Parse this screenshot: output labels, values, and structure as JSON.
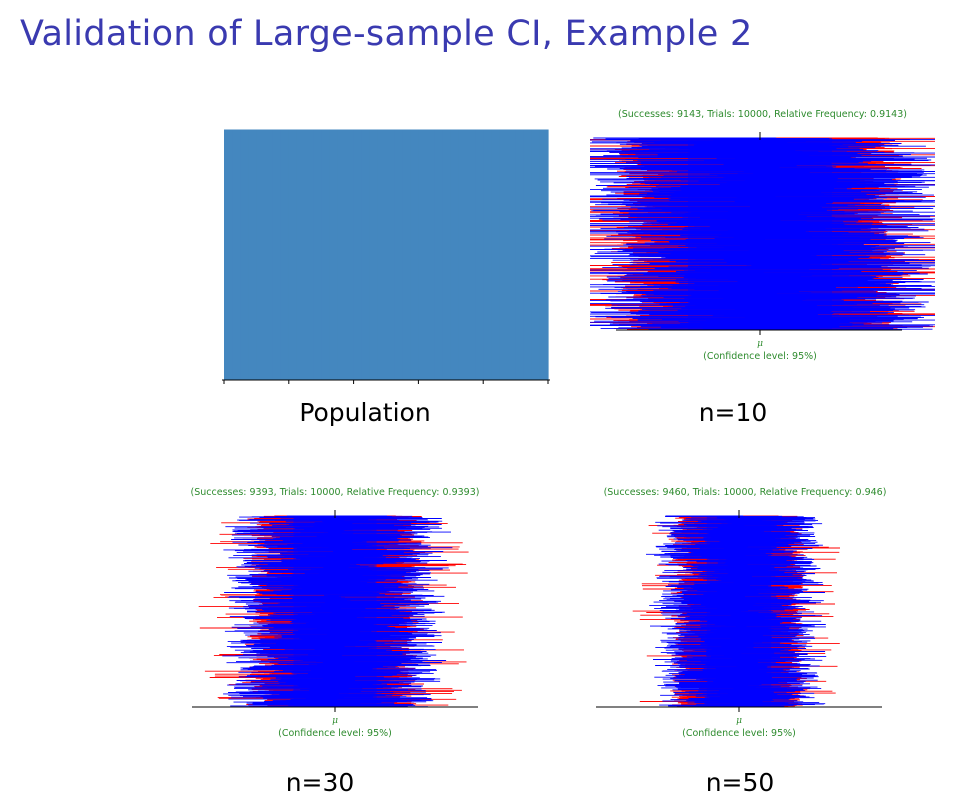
{
  "slide": {
    "title": "Validation of Large-sample CI, Example 2"
  },
  "colors": {
    "title": "#3a3ab0",
    "population_bar": "#4487bf",
    "covering_interval": "#0000ff",
    "missing_interval": "#ff0000",
    "annotation": "#2e8b2e",
    "axis": "#000000"
  },
  "chart_data": [
    {
      "type": "bar",
      "caption": "Population",
      "distribution": "uniform",
      "title": "",
      "xlabel": "",
      "ylabel": "",
      "x_ticks": 6,
      "values": [
        1,
        1,
        1,
        1,
        1,
        1,
        1,
        1,
        1,
        1,
        1,
        1,
        1,
        1,
        1,
        1,
        1,
        1,
        1,
        1,
        1,
        1,
        1,
        1,
        1,
        1,
        1,
        1,
        1,
        1,
        1,
        1,
        1,
        1,
        1,
        1,
        1,
        1,
        1,
        1
      ],
      "ylim": [
        0,
        1.01
      ]
    },
    {
      "type": "interval",
      "caption": "n=10",
      "sample_size": 10,
      "stats": "(Successes: 9143, Trials: 10000, Relative Frequency: 0.9143)",
      "mu_label": "μ",
      "confidence_label": "(Confidence level: 95%)",
      "successes": 9143,
      "trials": 10000,
      "relative_frequency": 0.9143,
      "confidence_level": 0.95,
      "relative_half_width": 1.0
    },
    {
      "type": "interval",
      "caption": "n=30",
      "sample_size": 30,
      "stats": "(Successes: 9393, Trials: 10000, Relative Frequency: 0.9393)",
      "mu_label": "μ",
      "confidence_label": "(Confidence level: 95%)",
      "successes": 9393,
      "trials": 10000,
      "relative_frequency": 0.9393,
      "confidence_level": 0.95,
      "relative_half_width": 0.577
    },
    {
      "type": "interval",
      "caption": "n=50",
      "sample_size": 50,
      "stats": "(Successes: 9460, Trials: 10000, Relative Frequency: 0.946)",
      "mu_label": "μ",
      "confidence_label": "(Confidence level: 95%)",
      "successes": 9460,
      "trials": 10000,
      "relative_frequency": 0.946,
      "confidence_level": 0.95,
      "relative_half_width": 0.447
    }
  ]
}
